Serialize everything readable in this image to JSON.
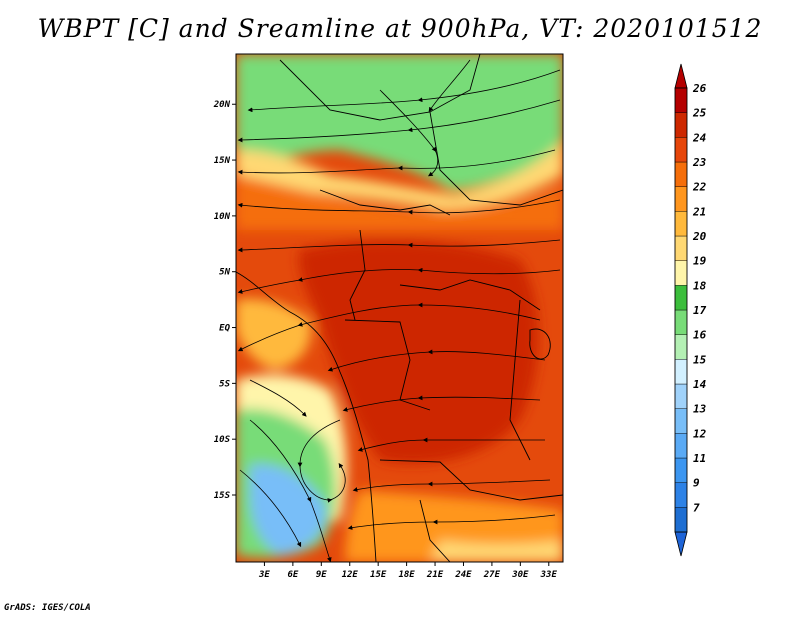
{
  "title": "WBPT [C] and Sreamline at 900hPa, VT: 2020101512",
  "credit": "GrADS: IGES/COLA",
  "map": {
    "lon_range": [
      0,
      34.5
    ],
    "lat_range": [
      -21,
      24.5
    ],
    "lat_ticks": [
      {
        "value": 20,
        "label": "20N"
      },
      {
        "value": 15,
        "label": "15N"
      },
      {
        "value": 10,
        "label": "10N"
      },
      {
        "value": 5,
        "label": "5N"
      },
      {
        "value": 0,
        "label": "EQ"
      },
      {
        "value": -5,
        "label": "5S"
      },
      {
        "value": -10,
        "label": "10S"
      },
      {
        "value": -15,
        "label": "15S"
      }
    ],
    "lon_ticks": [
      {
        "value": 3,
        "label": "3E"
      },
      {
        "value": 6,
        "label": "6E"
      },
      {
        "value": 9,
        "label": "9E"
      },
      {
        "value": 12,
        "label": "12E"
      },
      {
        "value": 15,
        "label": "15E"
      },
      {
        "value": 18,
        "label": "18E"
      },
      {
        "value": 21,
        "label": "21E"
      },
      {
        "value": 24,
        "label": "24E"
      },
      {
        "value": 27,
        "label": "27E"
      },
      {
        "value": 30,
        "label": "30E"
      },
      {
        "value": 33,
        "label": "33E"
      }
    ]
  },
  "colorbar": {
    "levels": [
      {
        "label": "7",
        "color": "#1e6ed2"
      },
      {
        "label": "9",
        "color": "#2d82e6"
      },
      {
        "label": "11",
        "color": "#3c96f0"
      },
      {
        "label": "12",
        "color": "#5aaaf5"
      },
      {
        "label": "13",
        "color": "#78bef8"
      },
      {
        "label": "14",
        "color": "#a0d2fa"
      },
      {
        "label": "15",
        "color": "#d2f0ff"
      },
      {
        "label": "16",
        "color": "#b4f0b4"
      },
      {
        "label": "17",
        "color": "#78dc78"
      },
      {
        "label": "18",
        "color": "#3cbe3c"
      },
      {
        "label": "19",
        "color": "#fff5aa"
      },
      {
        "label": "20",
        "color": "#ffd873"
      },
      {
        "label": "21",
        "color": "#ffb93c"
      },
      {
        "label": "22",
        "color": "#ff961e"
      },
      {
        "label": "23",
        "color": "#f56e0a"
      },
      {
        "label": "24",
        "color": "#e6460a"
      },
      {
        "label": "25",
        "color": "#cd2800"
      },
      {
        "label": "26",
        "color": "#b40000"
      }
    ],
    "low_extend_color": "#1e64d7",
    "high_extend_color": "#b40000"
  }
}
